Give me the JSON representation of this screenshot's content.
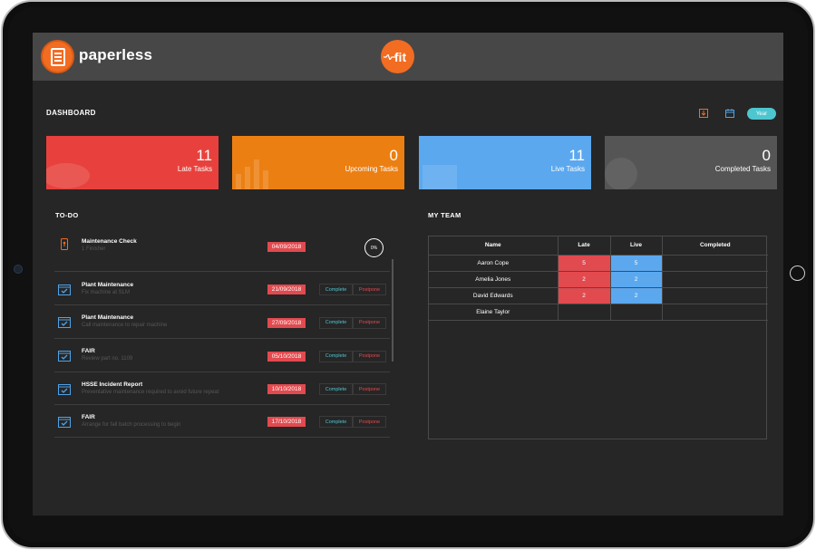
{
  "header": {
    "brand": "paperless",
    "fit_logo_text": "fit",
    "brand_color": "#f26c22"
  },
  "dashboard": {
    "title": "DASHBOARD",
    "year_button": "Year",
    "icons": [
      "download-icon",
      "calendar-icon"
    ]
  },
  "cards": [
    {
      "value": "11",
      "label": "Late Tasks",
      "color": "#e8413d"
    },
    {
      "value": "0",
      "label": "Upcoming Tasks",
      "color": "#ec7f12"
    },
    {
      "value": "11",
      "label": "Live Tasks",
      "color": "#5ba8ef"
    },
    {
      "value": "0",
      "label": "Completed Tasks",
      "color": "#555555"
    }
  ],
  "todo": {
    "title": "TO-DO",
    "complete_label": "Complete",
    "postpone_label": "Postpone",
    "items": [
      {
        "title": "Maintenance Check",
        "subtitle": "1 Finisher",
        "date": "04/09/2018",
        "progress": "0%"
      },
      {
        "title": "Plant Maintenance",
        "subtitle": "Fix machine at SLM",
        "date": "21/09/2018"
      },
      {
        "title": "Plant Maintenance",
        "subtitle": "Call maintenance to repair machine",
        "date": "27/09/2018"
      },
      {
        "title": "FAIR",
        "subtitle": "Review part no. 1109",
        "date": "05/10/2018"
      },
      {
        "title": "HSSE Incident Report",
        "subtitle": "Preventative maintenance required to avoid future repeat",
        "date": "10/10/2018"
      },
      {
        "title": "FAIR",
        "subtitle": "Arrange for fall batch processing to begin",
        "date": "17/10/2018"
      }
    ]
  },
  "team": {
    "title": "MY TEAM",
    "columns": [
      "Name",
      "Late",
      "Live",
      "Completed"
    ],
    "rows": [
      {
        "name": "Aaron Cope",
        "late": "5",
        "live": "5",
        "completed": ""
      },
      {
        "name": "Amelia Jones",
        "late": "2",
        "live": "2",
        "completed": ""
      },
      {
        "name": "David Edwards",
        "late": "2",
        "live": "2",
        "completed": ""
      },
      {
        "name": "Elaine Taylor",
        "late": "",
        "live": "",
        "completed": ""
      }
    ]
  }
}
